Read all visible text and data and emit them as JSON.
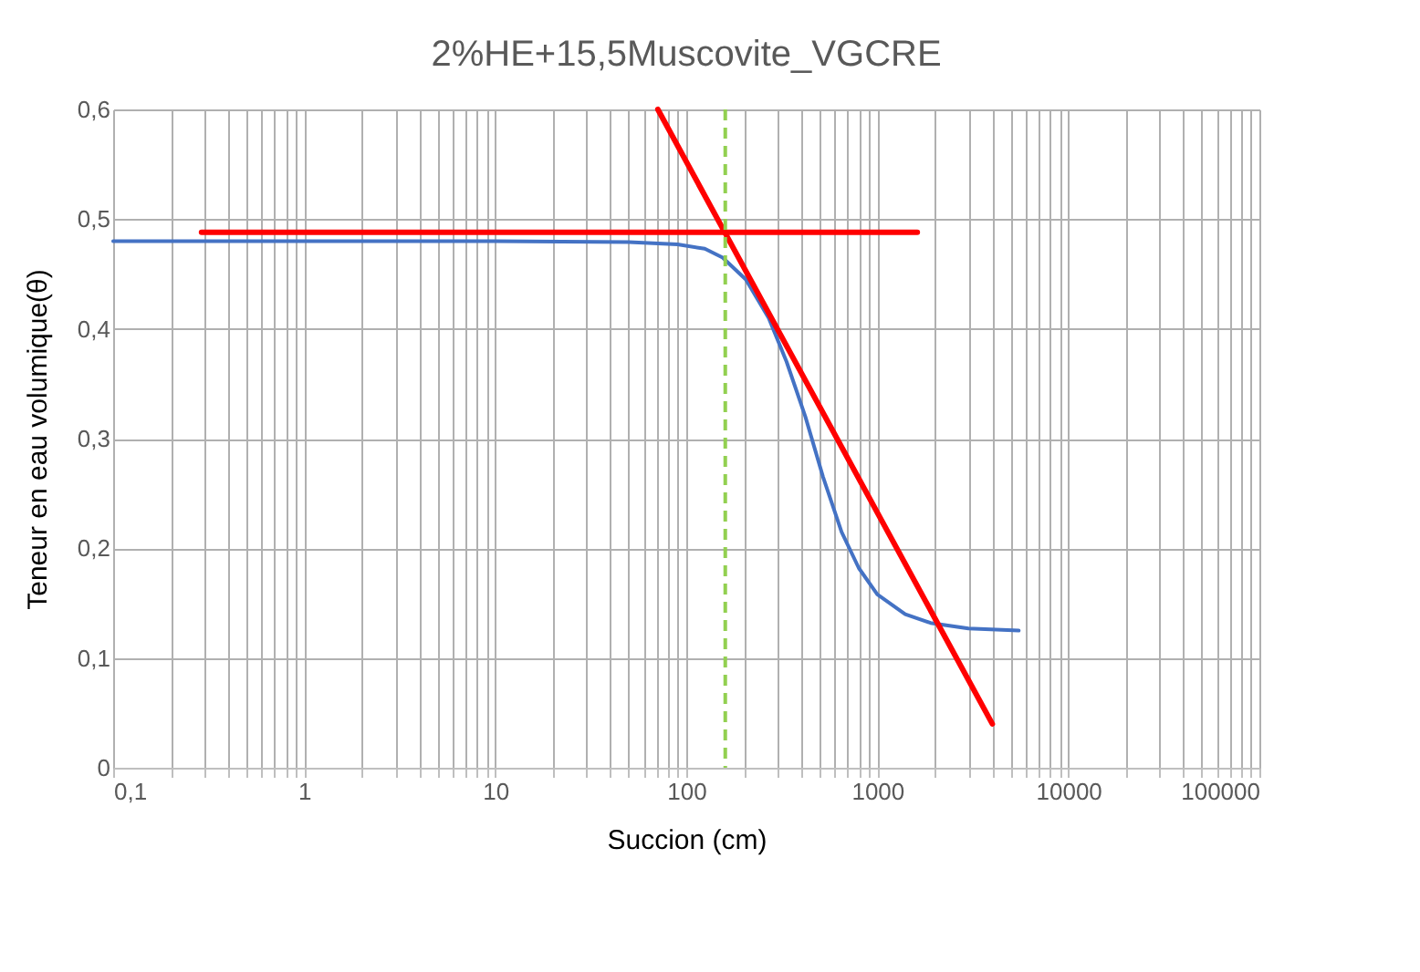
{
  "chart_data": {
    "type": "line",
    "title": "2%HE+15,5Muscovite_VGCRE",
    "xlabel": "Succion (cm)",
    "ylabel": "Teneur en eau volumique(θ)",
    "log": "x",
    "grid": true,
    "marker": "none",
    "line_style": "solid",
    "xlim": [
      0.1,
      100000
    ],
    "ylim": [
      0,
      0.6
    ],
    "xticks": [
      {
        "value": 0.1,
        "label": "0,1"
      },
      {
        "value": 0.2,
        "label": null
      },
      {
        "value": 0.3,
        "label": null
      },
      {
        "value": 0.4,
        "label": null
      },
      {
        "value": 0.5,
        "label": null
      },
      {
        "value": 0.6,
        "label": null
      },
      {
        "value": 0.7,
        "label": null
      },
      {
        "value": 0.8,
        "label": null
      },
      {
        "value": 0.9,
        "label": null
      },
      1,
      {
        "value": 2,
        "label": null
      },
      {
        "value": 3,
        "label": null
      },
      {
        "value": 4,
        "label": null
      },
      {
        "value": 5,
        "label": null
      },
      {
        "value": 6,
        "label": null
      },
      {
        "value": 7,
        "label": null
      },
      {
        "value": 8,
        "label": null
      },
      {
        "value": 9,
        "label": null
      },
      10,
      {
        "value": 20,
        "label": null
      },
      {
        "value": 30,
        "label": null
      },
      {
        "value": 40,
        "label": null
      },
      {
        "value": 50,
        "label": null
      },
      {
        "value": 60,
        "label": null
      },
      {
        "value": 70,
        "label": null
      },
      {
        "value": 80,
        "label": null
      },
      {
        "value": 90,
        "label": null
      },
      100,
      {
        "value": 200,
        "label": null
      },
      {
        "value": 300,
        "label": null
      },
      {
        "value": 400,
        "label": null
      },
      {
        "value": 500,
        "label": null
      },
      {
        "value": 600,
        "label": null
      },
      {
        "value": 700,
        "label": null
      },
      {
        "value": 800,
        "label": null
      },
      {
        "value": 900,
        "label": null
      },
      1000,
      {
        "value": 2000,
        "label": null
      },
      {
        "value": 3000,
        "label": null
      },
      {
        "value": 4000,
        "label": null
      },
      {
        "value": 5000,
        "label": null
      },
      {
        "value": 6000,
        "label": null
      },
      {
        "value": 7000,
        "label": null
      },
      {
        "value": 8000,
        "label": null
      },
      {
        "value": 9000,
        "label": null
      },
      10000,
      {
        "value": 20000,
        "label": null
      },
      {
        "value": 30000,
        "label": null
      },
      {
        "value": 40000,
        "label": null
      },
      {
        "value": 50000,
        "label": null
      },
      {
        "value": 60000,
        "label": null
      },
      {
        "value": 70000,
        "label": null
      },
      {
        "value": 80000,
        "label": null
      },
      {
        "value": 90000,
        "label": null
      },
      100000
    ],
    "yticks": [
      0,
      {
        "value": 0.1,
        "label": "0,1"
      },
      {
        "value": 0.2,
        "label": "0,2"
      },
      {
        "value": 0.3,
        "label": "0,3"
      },
      {
        "value": 0.4,
        "label": "0,4"
      },
      {
        "value": 0.5,
        "label": "0,5"
      },
      {
        "value": 0.6,
        "label": "0,6"
      }
    ],
    "series": [
      {
        "color": "#4472c4",
        "x": [
          0.1,
          1,
          10,
          50,
          90,
          125,
          155,
          205,
          270,
          335,
          420,
          520,
          650,
          800,
          1000,
          1400,
          1900,
          3000,
          5500
        ],
        "values": [
          0.48,
          0.48,
          0.48,
          0.479,
          0.477,
          0.473,
          0.465,
          0.445,
          0.41,
          0.37,
          0.32,
          0.265,
          0.215,
          0.182,
          0.158,
          0.14,
          0.132,
          0.127,
          0.125
        ]
      },
      {
        "color": "#ff0000",
        "x": [
          0.29,
          1620
        ],
        "values": [
          0.488,
          0.488
        ]
      },
      {
        "color": "#ff0000",
        "x": [
          71,
          4000
        ],
        "values": [
          0.6,
          0.04
        ]
      }
    ],
    "ref_lines": [
      {
        "axis": "x",
        "value": 160,
        "label": null,
        "color": "#92d050",
        "line_style": "dashed"
      }
    ]
  }
}
